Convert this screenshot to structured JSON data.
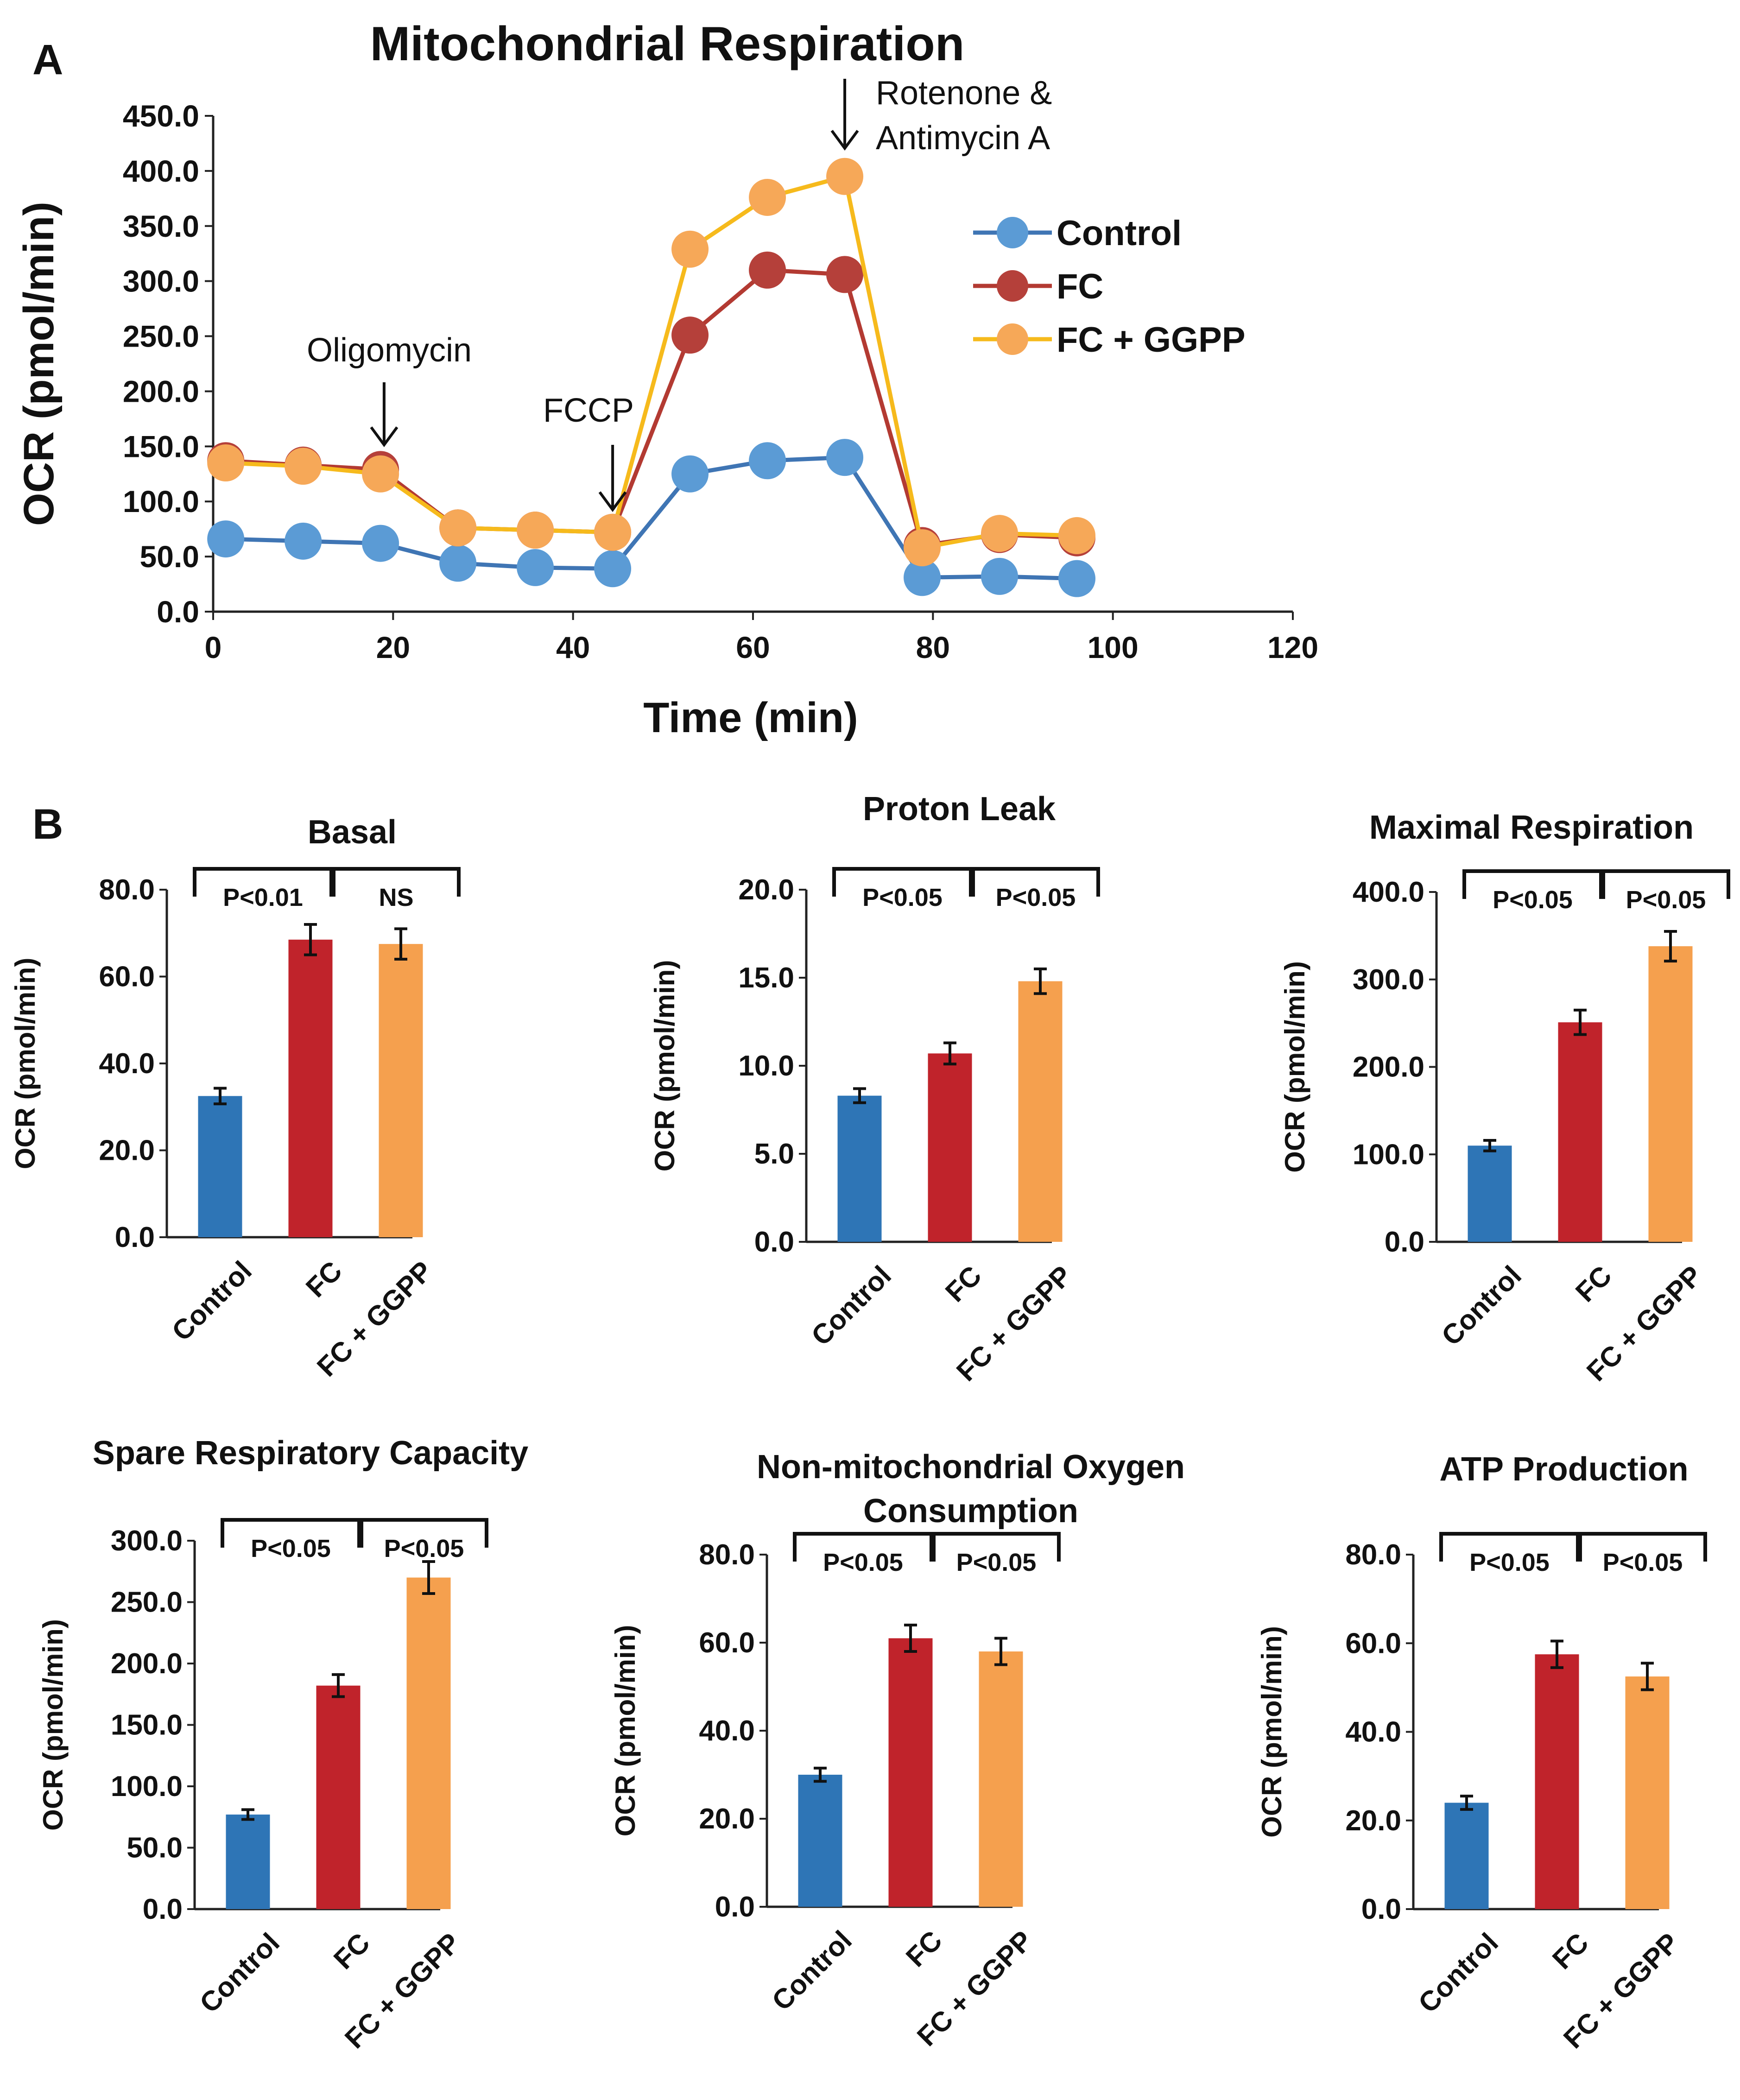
{
  "panel_labels": {
    "a": "A",
    "b": "B"
  },
  "colors": {
    "control": "#2e75b6",
    "fc": "#c0232b",
    "fcggpp": "#f5a04e",
    "line_control": "#3f75b4",
    "line_fc": "#b33a32",
    "line_fcggpp": "#f6ba1c",
    "marker_control": "#5b9bd5",
    "marker_fc": "#b5403a",
    "marker_fcggpp": "#f6a858"
  },
  "chart_data": [
    {
      "type": "line",
      "title": "Mitochondrial Respiration",
      "xlabel": "Time (min)",
      "ylabel": "OCR (pmol/min)",
      "xlim": [
        0,
        120
      ],
      "ylim": [
        0,
        450
      ],
      "xticks": [
        "0",
        "20",
        "40",
        "60",
        "80",
        "100",
        "120"
      ],
      "yticks": [
        "0.0",
        "50.0",
        "100.0",
        "150.0",
        "200.0",
        "250.0",
        "300.0",
        "350.0",
        "400.0",
        "450.0"
      ],
      "x": [
        1.4,
        10,
        18.6,
        27.2,
        35.8,
        44.4,
        53,
        61.6,
        70.2,
        78.8,
        87.4,
        96
      ],
      "series": [
        {
          "name": "Control",
          "values": [
            66,
            64,
            62,
            44,
            40,
            39,
            125,
            137,
            140,
            31,
            32,
            30
          ]
        },
        {
          "name": "FC",
          "values": [
            137,
            133,
            129,
            76,
            74,
            72,
            251,
            310,
            306,
            60,
            70,
            67
          ]
        },
        {
          "name": "FC + GGPP",
          "values": [
            135,
            132,
            125,
            76,
            74,
            72,
            329,
            376,
            395,
            58,
            71,
            69
          ]
        }
      ],
      "error": {
        "FC": [
          0,
          0,
          0,
          0,
          0,
          0,
          6,
          10,
          6,
          0,
          0,
          0
        ],
        "FC + GGPP": [
          0,
          0,
          0,
          0,
          0,
          0,
          14,
          14,
          14,
          0,
          0,
          0
        ]
      },
      "annotations": [
        {
          "text": "Oligomycin",
          "x": 19
        },
        {
          "text": "FCCP",
          "x": 44.4
        },
        {
          "text": "Rotenone &",
          "x": 70.2
        },
        {
          "text": "Antimycin A",
          "x": 70.2
        }
      ],
      "legend": {
        "position": "right",
        "entries": [
          "Control",
          "FC",
          "FC + GGPP"
        ]
      }
    },
    {
      "type": "bar",
      "title": "Basal",
      "ylabel": "OCR (pmol/min)",
      "ylim": [
        0,
        80
      ],
      "yticks": [
        "0.0",
        "20.0",
        "40.0",
        "60.0",
        "80.0"
      ],
      "categories": [
        "Control",
        "FC",
        "FC + GGPP"
      ],
      "values": [
        32.5,
        68.5,
        67.5
      ],
      "errors": [
        1.8,
        3.5,
        3.5
      ],
      "significance": [
        "P<0.01",
        "NS"
      ]
    },
    {
      "type": "bar",
      "title": "Proton Leak",
      "ylabel": "OCR (pmol/min)",
      "ylim": [
        0,
        20
      ],
      "yticks": [
        "0.0",
        "5.0",
        "10.0",
        "15.0",
        "20.0"
      ],
      "categories": [
        "Control",
        "FC",
        "FC + GGPP"
      ],
      "values": [
        8.3,
        10.7,
        14.8
      ],
      "errors": [
        0.4,
        0.6,
        0.7
      ],
      "significance": [
        "P<0.05",
        "P<0.05"
      ]
    },
    {
      "type": "bar",
      "title": "Maximal Respiration",
      "ylabel": "OCR (pmol/min)",
      "ylim": [
        0,
        400
      ],
      "yticks": [
        "0.0",
        "100.0",
        "200.0",
        "300.0",
        "400.0"
      ],
      "categories": [
        "Control",
        "FC",
        "FC + GGPP"
      ],
      "values": [
        110,
        251,
        338
      ],
      "errors": [
        6,
        14,
        17
      ],
      "significance": [
        "P<0.05",
        "P<0.05"
      ]
    },
    {
      "type": "bar",
      "title": "Spare Respiratory Capacity",
      "ylabel": "OCR (pmol/min)",
      "ylim": [
        0,
        300
      ],
      "yticks": [
        "0.0",
        "50.0",
        "100.0",
        "150.0",
        "200.0",
        "250.0",
        "300.0"
      ],
      "categories": [
        "Control",
        "FC",
        "FC + GGPP"
      ],
      "values": [
        77,
        182,
        270
      ],
      "errors": [
        4,
        9,
        13
      ],
      "significance": [
        "P<0.05",
        "P<0.05"
      ]
    },
    {
      "type": "bar",
      "title": "Non-mitochondrial Oxygen",
      "title2": "Consumption",
      "ylabel": "OCR (pmol/min)",
      "ylim": [
        0,
        80
      ],
      "yticks": [
        "0.0",
        "20.0",
        "40.0",
        "60.0",
        "80.0"
      ],
      "categories": [
        "Control",
        "FC",
        "FC + GGPP"
      ],
      "values": [
        30,
        61,
        58
      ],
      "errors": [
        1.5,
        3,
        3
      ],
      "significance": [
        "P<0.05",
        "P<0.05"
      ]
    },
    {
      "type": "bar",
      "title": "ATP Production",
      "ylabel": "OCR (pmol/min)",
      "ylim": [
        0,
        80
      ],
      "yticks": [
        "0.0",
        "20.0",
        "40.0",
        "60.0",
        "80.0"
      ],
      "categories": [
        "Control",
        "FC",
        "FC + GGPP"
      ],
      "values": [
        24,
        57.5,
        52.5
      ],
      "errors": [
        1.5,
        3,
        3
      ],
      "significance": [
        "P<0.05",
        "P<0.05"
      ]
    }
  ]
}
